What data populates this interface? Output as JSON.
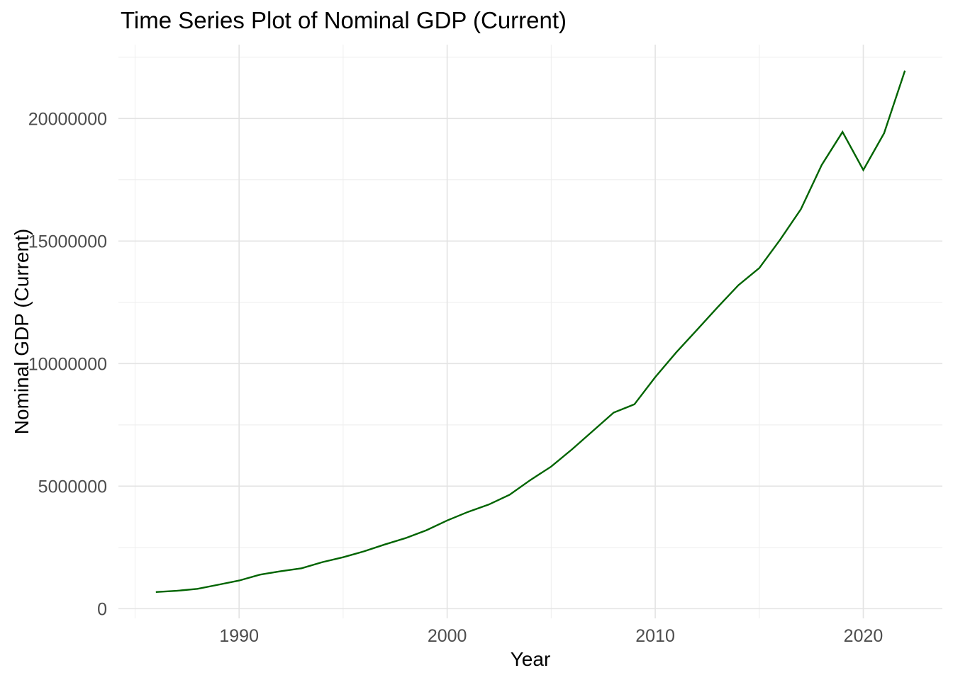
{
  "chart_data": {
    "type": "line",
    "title": "Time Series Plot of Nominal GDP (Current)",
    "xlabel": "Year",
    "ylabel": "Nominal GDP (Current)",
    "x": [
      1986,
      1987,
      1988,
      1989,
      1990,
      1991,
      1992,
      1993,
      1994,
      1995,
      1996,
      1997,
      1998,
      1999,
      2000,
      2001,
      2002,
      2003,
      2004,
      2005,
      2006,
      2007,
      2008,
      2009,
      2010,
      2011,
      2012,
      2013,
      2014,
      2015,
      2016,
      2017,
      2018,
      2019,
      2020,
      2021,
      2022
    ],
    "series": [
      {
        "name": "Nominal GDP (Current)",
        "values": [
          680000,
          730000,
          810000,
          980000,
          1150000,
          1390000,
          1530000,
          1650000,
          1900000,
          2100000,
          2340000,
          2620000,
          2880000,
          3200000,
          3600000,
          3950000,
          4250000,
          4650000,
          5250000,
          5800000,
          6500000,
          7250000,
          8000000,
          8340000,
          9450000,
          10450000,
          11370000,
          12300000,
          13200000,
          13900000,
          15050000,
          16300000,
          18100000,
          19450000,
          17900000,
          19400000,
          21950000
        ]
      }
    ],
    "x_ticks_major": [
      1990,
      2000,
      2010,
      2020
    ],
    "x_ticks_minor": [
      1985,
      1995,
      2005,
      2015
    ],
    "y_ticks_major": [
      0,
      5000000,
      10000000,
      15000000,
      20000000
    ],
    "y_ticks_minor": [
      2500000,
      7500000,
      12500000,
      17500000,
      22500000
    ],
    "xlim": [
      1984.2,
      2023.8
    ],
    "ylim": [
      -394000,
      23014000
    ],
    "grid": true,
    "legend": "none",
    "colors": {
      "line": "#006400",
      "grid_major": "#e3e3e3",
      "grid_minor": "#eeeeee",
      "tick_text": "#4d4d4d",
      "title_text": "#000000",
      "background": "#ffffff"
    }
  }
}
